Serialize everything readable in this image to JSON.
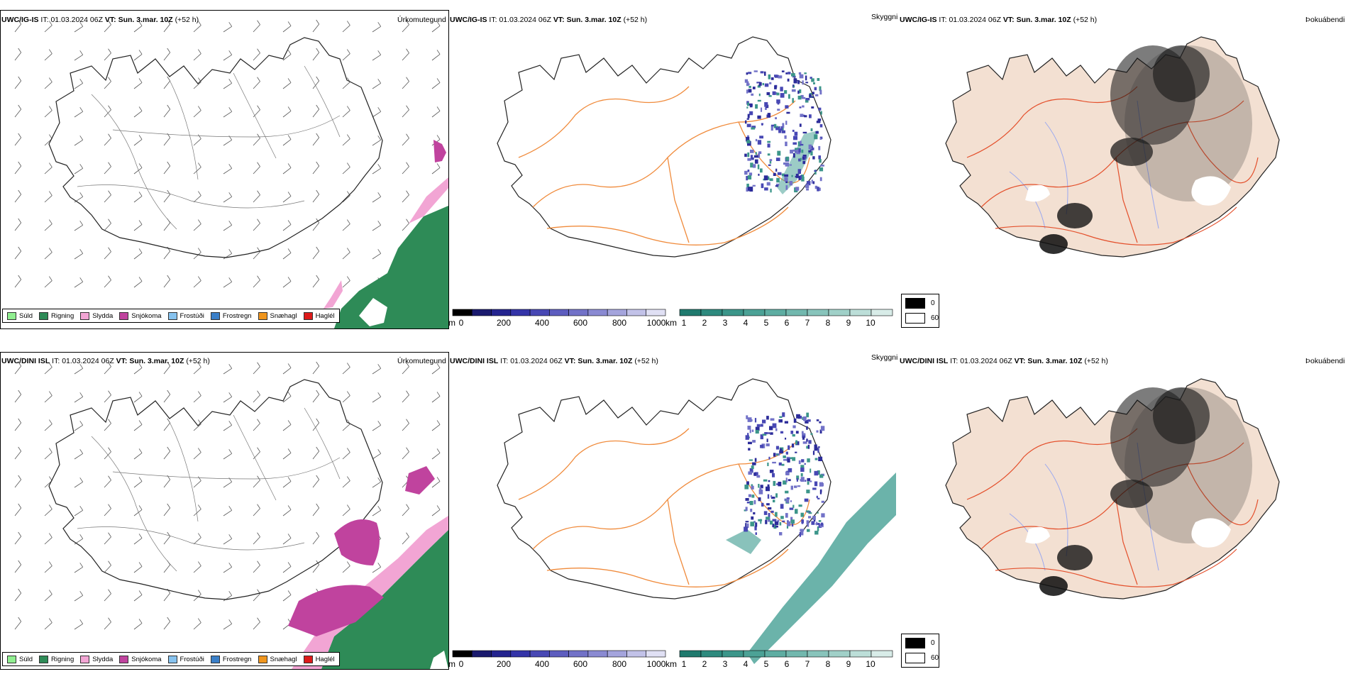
{
  "rows": [
    {
      "model": "UWC/IG-IS",
      "it_label": "IT:",
      "it_value": "01.03.2024 06Z",
      "vt_label": "VT:",
      "vt_value": "Sun. 3.mar. 10Z",
      "lead": "(+52 h)"
    },
    {
      "model": "UWC/DINI ISL",
      "it_label": "IT:",
      "it_value": "01.03.2024 06Z",
      "vt_label": "VT:",
      "vt_value": "Sun. 3.mar. 10Z",
      "lead": "(+52 h)"
    }
  ],
  "panel_titles": {
    "precip_type": "Úrkomutegund",
    "cloud_base": "Skyggni",
    "fog": "Þokuábendi"
  },
  "precip_legend": [
    {
      "label": "Súld",
      "color": "#90ee90"
    },
    {
      "label": "Rigning",
      "color": "#2e8b57"
    },
    {
      "label": "Slydda",
      "color": "#f2a5d4"
    },
    {
      "label": "Snjókoma",
      "color": "#c0439e"
    },
    {
      "label": "Frostúði",
      "color": "#87c3ef"
    },
    {
      "label": "Frostregn",
      "color": "#3a7fc8"
    },
    {
      "label": "Snæhagl",
      "color": "#f0961e"
    },
    {
      "label": "Haglél",
      "color": "#dd1a1a"
    }
  ],
  "cbar_m": {
    "unit": "m",
    "ticks": [
      "0",
      "200",
      "400",
      "600",
      "800",
      "1000"
    ],
    "colors": [
      "#000000",
      "#1a1a6e",
      "#24248f",
      "#3434a8",
      "#4848b4",
      "#5d5dbf",
      "#7272c8",
      "#8a8ad2",
      "#a4a4dc",
      "#c2c2e8",
      "#e0e0f4"
    ]
  },
  "cbar_km": {
    "unit": "km",
    "ticks": [
      "1",
      "2",
      "3",
      "4",
      "5",
      "6",
      "7",
      "8",
      "9",
      "10"
    ],
    "colors": [
      "#1f7a6e",
      "#2e8a7e",
      "#3c968a",
      "#4ca296",
      "#5eada2",
      "#72b8ae",
      "#88c4bb",
      "#a0d0c8",
      "#bcded8",
      "#d8ece8"
    ]
  },
  "vis_legend": [
    {
      "label": "0",
      "color": "#000000"
    },
    {
      "label": "60",
      "color": "#ffffff"
    }
  ],
  "colors": {
    "rain": "#2e8b57",
    "sleet": "#f2a5d4",
    "snow": "#c0439e",
    "road": "#f08b3c",
    "road_red": "#e4502c",
    "land_fill": "#f3e0d2",
    "river": "#9aa8f0",
    "cloud_teal": "#3a9a8e"
  }
}
